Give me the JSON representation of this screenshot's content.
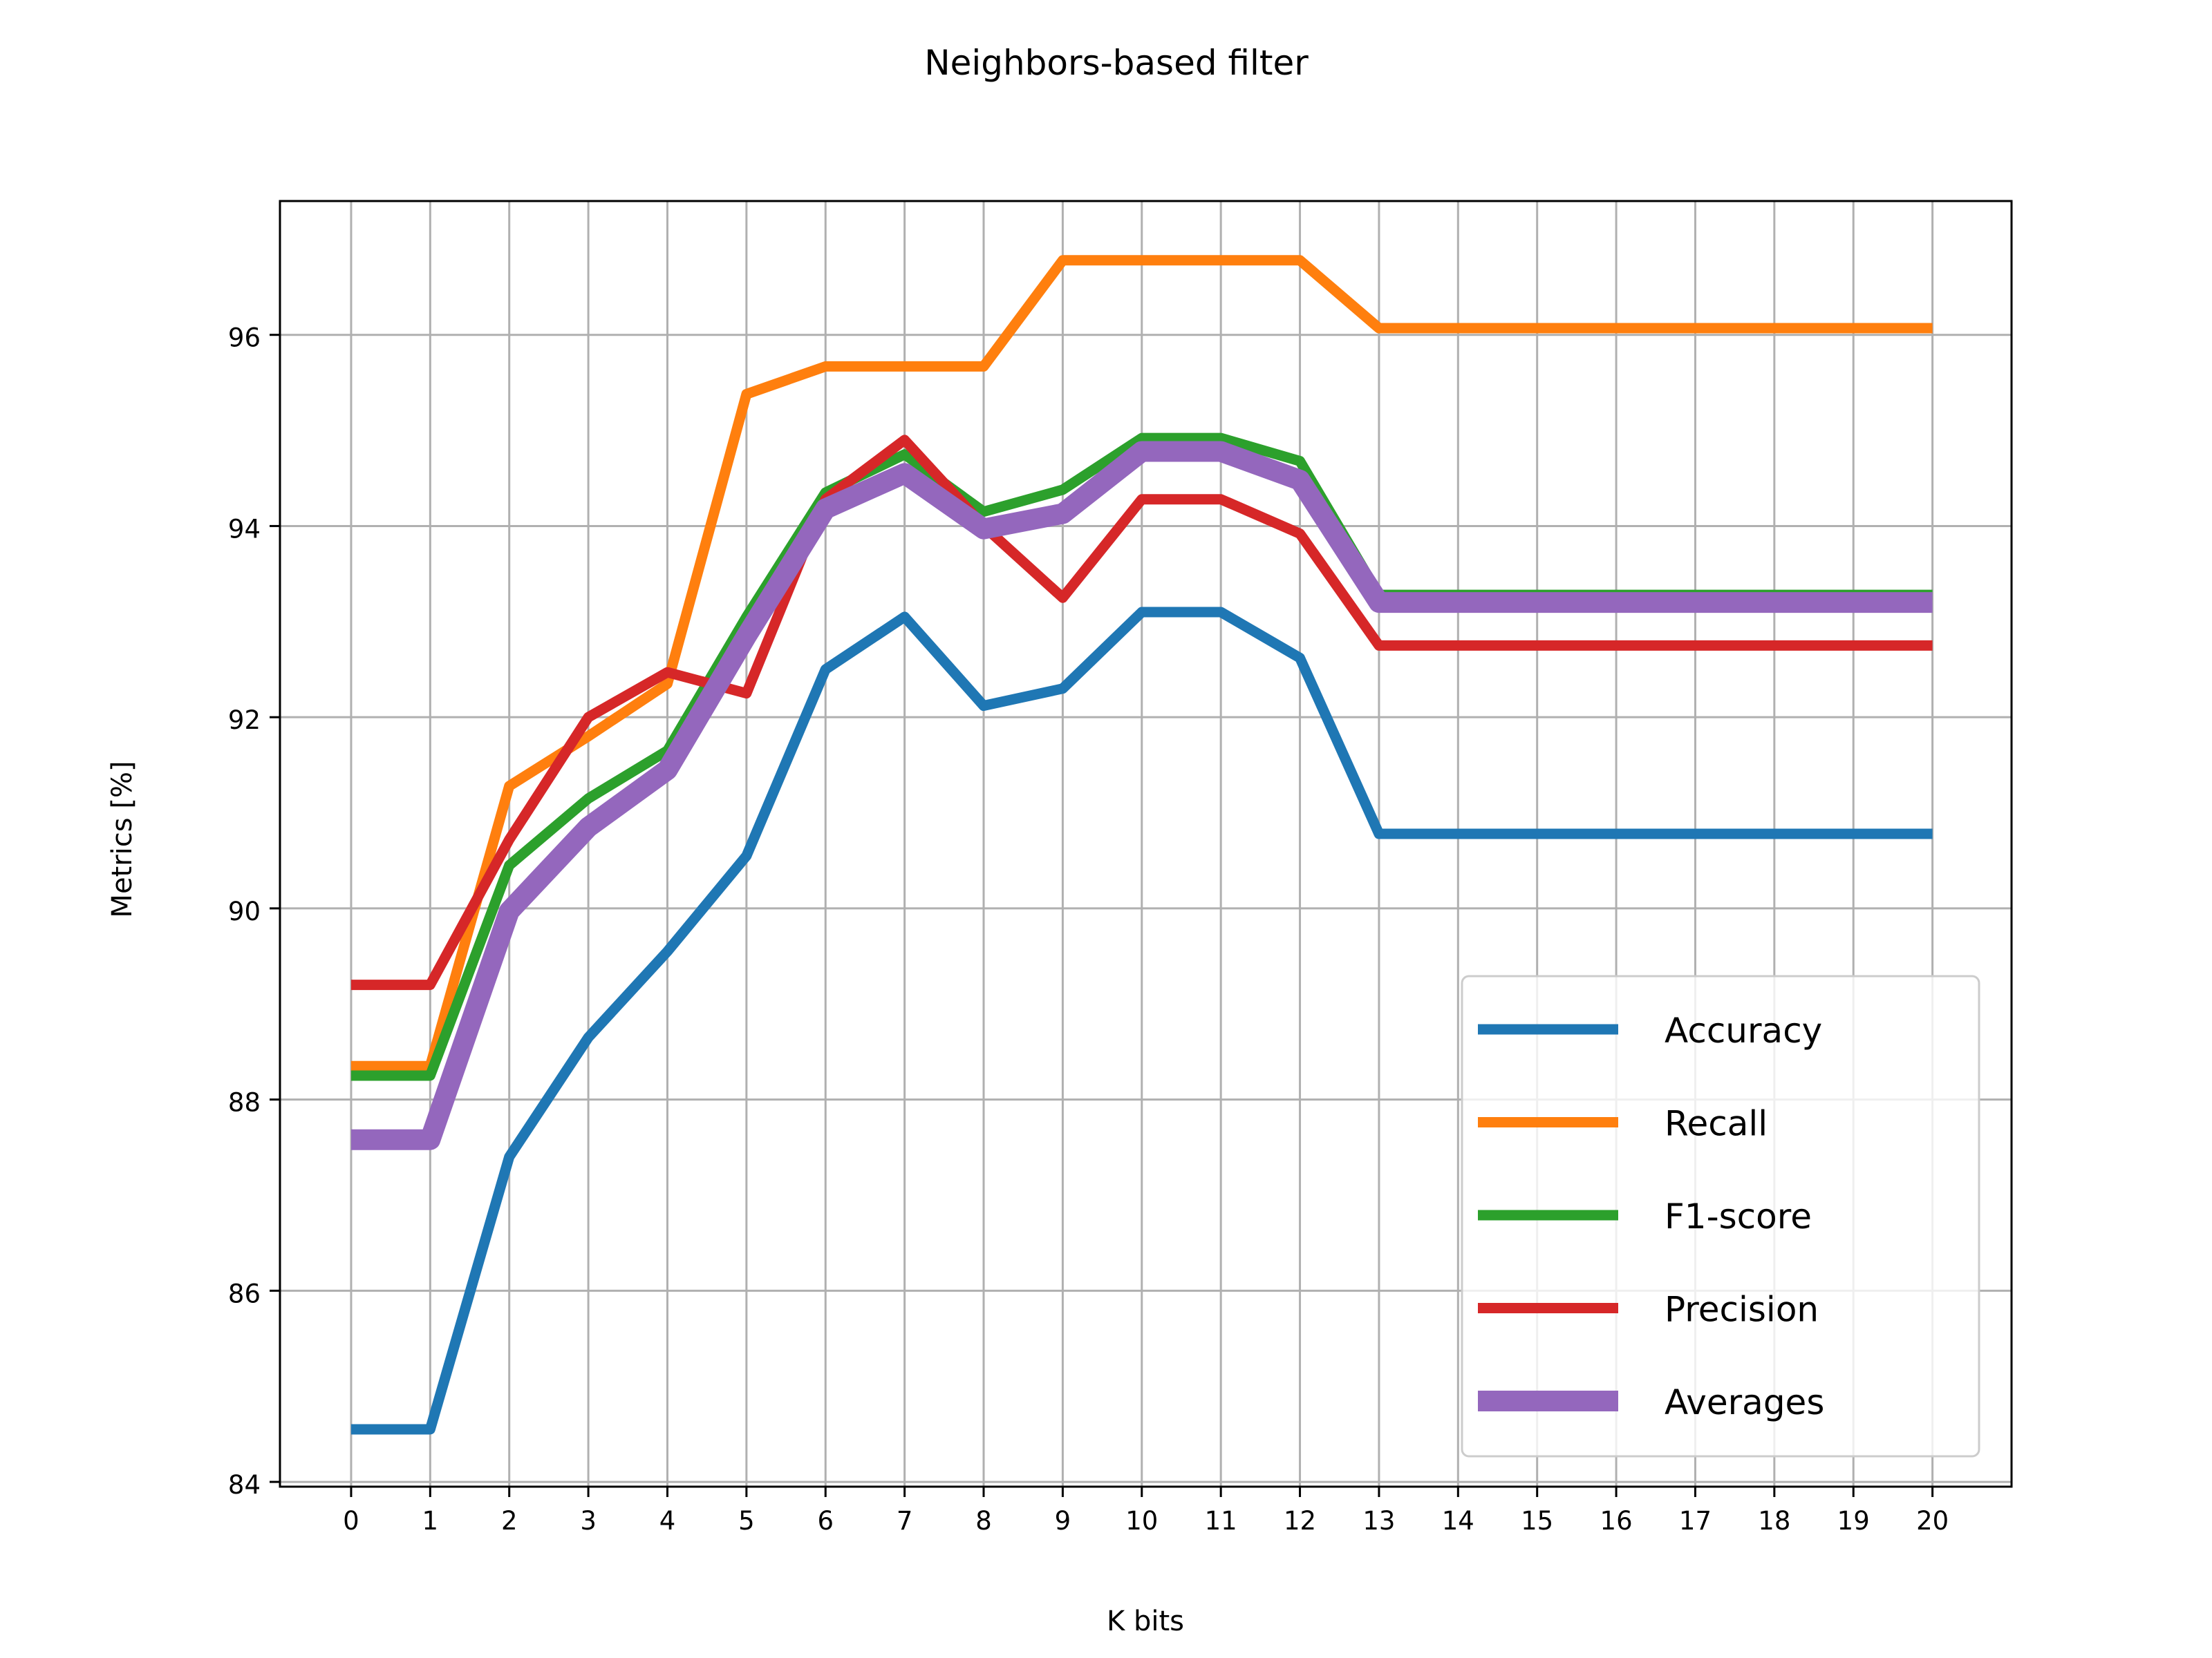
{
  "chart_data": {
    "type": "line",
    "title": "Neighbors-based filter",
    "xlabel": "K bits",
    "ylabel": "Metrics [%]",
    "x": [
      0,
      1,
      2,
      3,
      4,
      5,
      6,
      7,
      8,
      9,
      10,
      11,
      12,
      13,
      14,
      15,
      16,
      17,
      18,
      19,
      20
    ],
    "xticks": [
      "0",
      "1",
      "2",
      "3",
      "4",
      "5",
      "6",
      "7",
      "8",
      "9",
      "10",
      "11",
      "12",
      "13",
      "14",
      "15",
      "16",
      "17",
      "18",
      "19",
      "20"
    ],
    "yticks": [
      "84",
      "86",
      "88",
      "90",
      "92",
      "94",
      "96"
    ],
    "xlim": [
      -0.9,
      21.0
    ],
    "ylim": [
      83.95,
      97.4
    ],
    "grid": true,
    "legend_position": "lower-right",
    "series": [
      {
        "name": "Accuracy",
        "color": "#1f77b4",
        "width": "normal",
        "values": [
          84.55,
          84.55,
          87.4,
          88.65,
          89.55,
          90.55,
          92.5,
          93.05,
          92.12,
          92.3,
          93.1,
          93.1,
          92.62,
          90.78,
          90.78,
          90.78,
          90.78,
          90.78,
          90.78,
          90.78,
          90.78
        ]
      },
      {
        "name": "Recall",
        "color": "#ff7f0e",
        "width": "normal",
        "values": [
          88.35,
          88.35,
          91.28,
          91.8,
          92.35,
          95.38,
          95.67,
          95.67,
          95.67,
          96.78,
          96.78,
          96.78,
          96.78,
          96.07,
          96.07,
          96.07,
          96.07,
          96.07,
          96.07,
          96.07,
          96.07
        ]
      },
      {
        "name": "F1-score",
        "color": "#2ca02c",
        "width": "normal",
        "values": [
          88.25,
          88.25,
          90.45,
          91.15,
          91.65,
          93.05,
          94.35,
          94.75,
          94.15,
          94.38,
          94.92,
          94.92,
          94.68,
          93.28,
          93.28,
          93.28,
          93.28,
          93.28,
          93.28,
          93.28,
          93.28
        ]
      },
      {
        "name": "Precision",
        "color": "#d62728",
        "width": "normal",
        "values": [
          89.2,
          89.2,
          90.72,
          92.0,
          92.47,
          92.25,
          94.28,
          94.9,
          94.0,
          93.25,
          94.28,
          94.28,
          93.92,
          92.75,
          92.75,
          92.75,
          92.75,
          92.75,
          92.75,
          92.75,
          92.75
        ]
      },
      {
        "name": "Averages",
        "color": "#9467bd",
        "width": "thick",
        "values": [
          87.58,
          87.58,
          89.97,
          90.85,
          91.45,
          92.85,
          94.18,
          94.55,
          93.97,
          94.13,
          94.78,
          94.78,
          94.48,
          93.2,
          93.2,
          93.2,
          93.2,
          93.2,
          93.2,
          93.2,
          93.2
        ]
      }
    ]
  }
}
